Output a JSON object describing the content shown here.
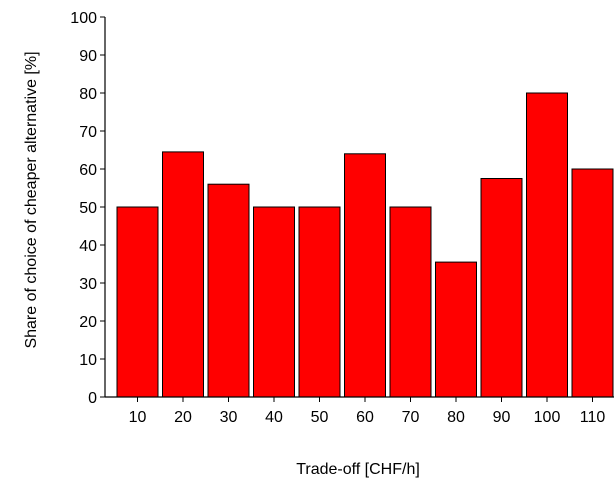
{
  "chart_data": {
    "type": "bar",
    "title": "",
    "xlabel": "Trade-off [CHF/h]",
    "ylabel": "Share of choice of cheaper alternative [%]",
    "categories": [
      "10",
      "20",
      "30",
      "40",
      "50",
      "60",
      "70",
      "80",
      "90",
      "100",
      "110"
    ],
    "values": [
      50,
      64.5,
      56,
      50,
      50,
      64,
      50,
      35.5,
      57.5,
      80,
      60
    ],
    "ylim": [
      0,
      100
    ],
    "yticks": [
      "0",
      "10",
      "20",
      "30",
      "40",
      "50",
      "60",
      "70",
      "80",
      "90",
      "100"
    ],
    "grid": false,
    "legend": "none",
    "bar_color": "#ff0000",
    "bar_edge_color": "#000000"
  }
}
